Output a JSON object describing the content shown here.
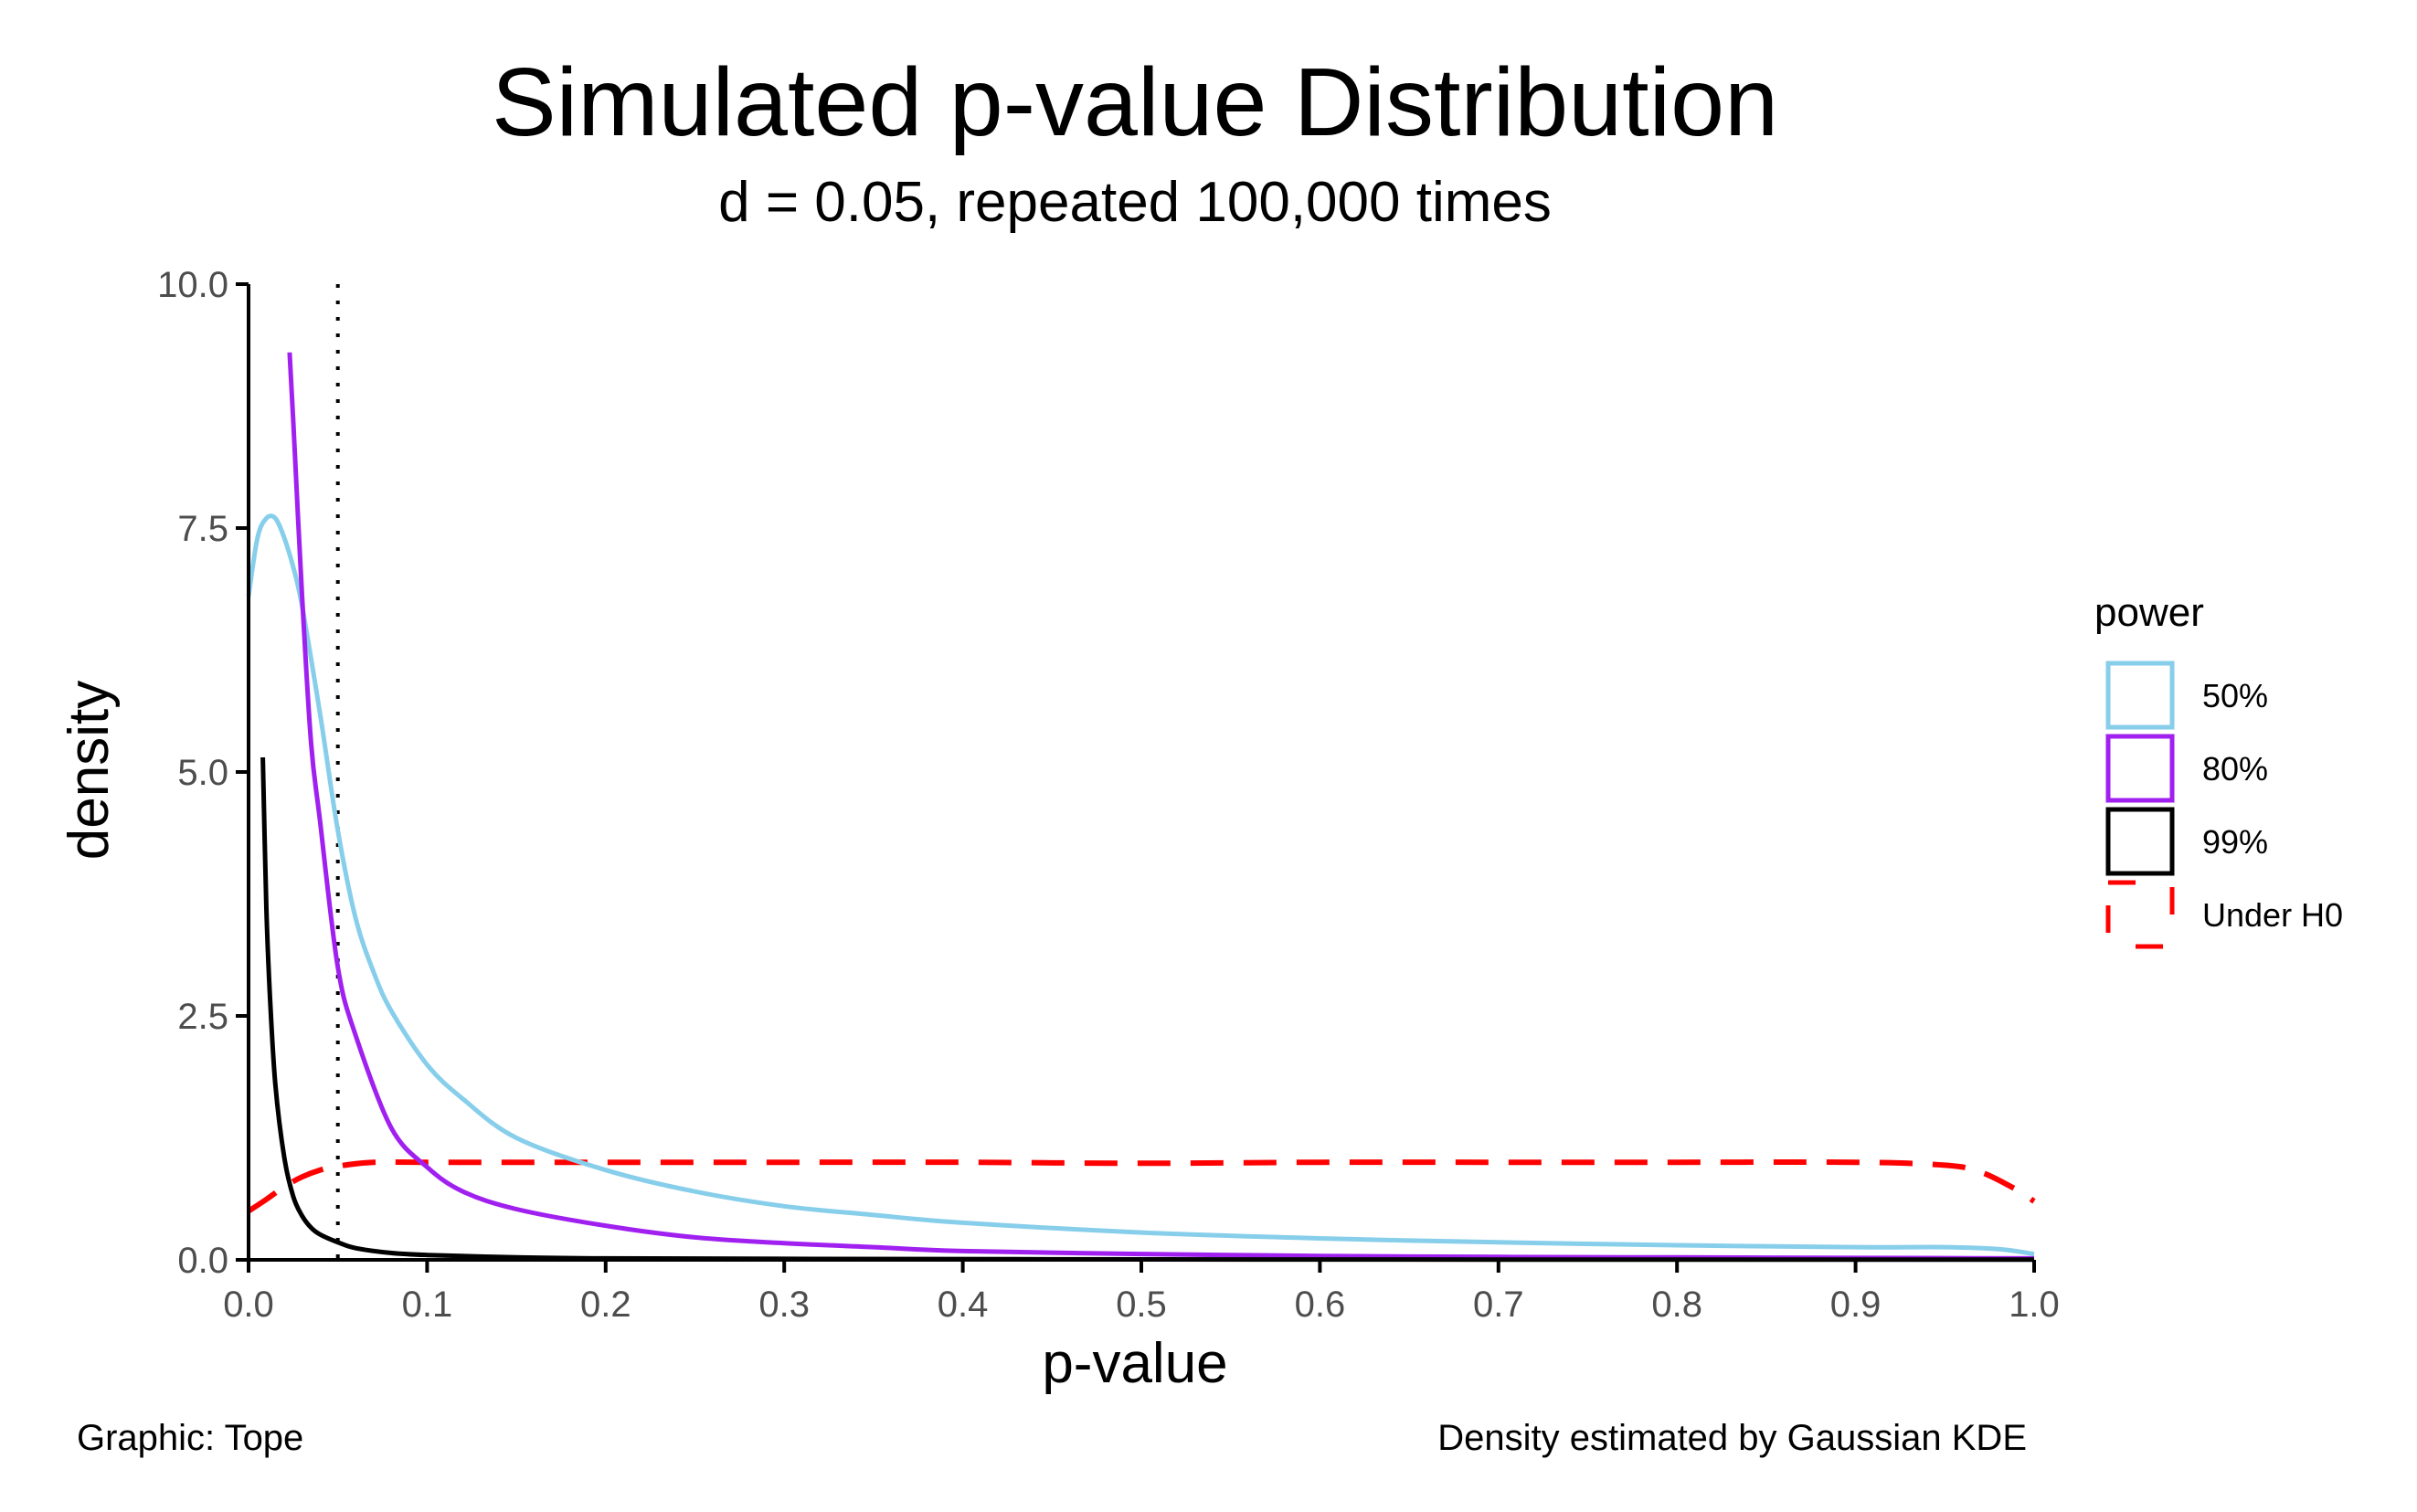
{
  "title": "Simulated p-value Distribution",
  "subtitle": "d = 0.05, repeated 100,000 times",
  "caption_left": "Graphic: Tope",
  "caption_right": "Density estimated by Gaussian KDE",
  "chart_data": {
    "type": "line",
    "xlabel": "p-value",
    "ylabel": "density",
    "xlim": [
      0.0,
      1.0
    ],
    "ylim": [
      0.0,
      10.0
    ],
    "x_ticks": [
      "0.0",
      "0.1",
      "0.2",
      "0.3",
      "0.4",
      "0.5",
      "0.6",
      "0.7",
      "0.8",
      "0.9",
      "1.0"
    ],
    "y_ticks": [
      "0.0",
      "2.5",
      "5.0",
      "7.5",
      "10.0"
    ],
    "grid": false,
    "legend": {
      "title": "power",
      "placement": "right"
    },
    "reference_line": {
      "x": 0.05,
      "style": "dotted",
      "color": "#000000"
    },
    "series": [
      {
        "name": "50%",
        "color": "#87CEEB",
        "style": "solid",
        "x": [
          0.0,
          0.005,
          0.01,
          0.015,
          0.02,
          0.025,
          0.03,
          0.04,
          0.05,
          0.06,
          0.07,
          0.08,
          0.1,
          0.12,
          0.15,
          0.2,
          0.25,
          0.3,
          0.35,
          0.4,
          0.5,
          0.6,
          0.7,
          0.8,
          0.9,
          0.95,
          0.98,
          1.0
        ],
        "y": [
          6.8,
          7.4,
          7.6,
          7.6,
          7.4,
          7.1,
          6.7,
          5.6,
          4.4,
          3.5,
          2.95,
          2.55,
          2.0,
          1.65,
          1.25,
          0.92,
          0.7,
          0.55,
          0.46,
          0.38,
          0.28,
          0.22,
          0.18,
          0.15,
          0.13,
          0.13,
          0.11,
          0.06
        ]
      },
      {
        "name": "80%",
        "color": "#A020F0",
        "style": "solid",
        "x": [
          0.023,
          0.025,
          0.03,
          0.035,
          0.04,
          0.05,
          0.06,
          0.08,
          0.1,
          0.12,
          0.15,
          0.2,
          0.25,
          0.3,
          0.35,
          0.4,
          0.5,
          0.6,
          0.7,
          0.8,
          0.9,
          1.0
        ],
        "y": [
          9.3,
          8.6,
          6.8,
          5.3,
          4.5,
          3.0,
          2.3,
          1.35,
          0.95,
          0.7,
          0.52,
          0.35,
          0.23,
          0.17,
          0.13,
          0.09,
          0.06,
          0.04,
          0.03,
          0.025,
          0.02,
          0.015
        ]
      },
      {
        "name": "99%",
        "color": "#000000",
        "style": "solid",
        "x": [
          0.008,
          0.01,
          0.012,
          0.015,
          0.02,
          0.025,
          0.03,
          0.035,
          0.04,
          0.05,
          0.06,
          0.08,
          0.1,
          0.15,
          0.2,
          0.3,
          0.5,
          0.7,
          1.0
        ],
        "y": [
          5.15,
          3.6,
          2.7,
          1.8,
          1.05,
          0.65,
          0.45,
          0.33,
          0.26,
          0.18,
          0.12,
          0.07,
          0.05,
          0.025,
          0.015,
          0.01,
          0.005,
          0.003,
          0.002
        ]
      },
      {
        "name": "Under H0",
        "color": "#FF0000",
        "style": "dashed",
        "x": [
          0.0,
          0.01,
          0.02,
          0.03,
          0.04,
          0.05,
          0.07,
          0.1,
          0.2,
          0.3,
          0.4,
          0.5,
          0.6,
          0.7,
          0.8,
          0.9,
          0.95,
          0.97,
          0.99,
          1.0
        ],
        "y": [
          0.5,
          0.62,
          0.75,
          0.85,
          0.92,
          0.96,
          1.0,
          1.0,
          1.0,
          1.0,
          1.0,
          0.99,
          1.0,
          1.0,
          1.0,
          1.0,
          0.97,
          0.9,
          0.72,
          0.6
        ]
      }
    ]
  }
}
